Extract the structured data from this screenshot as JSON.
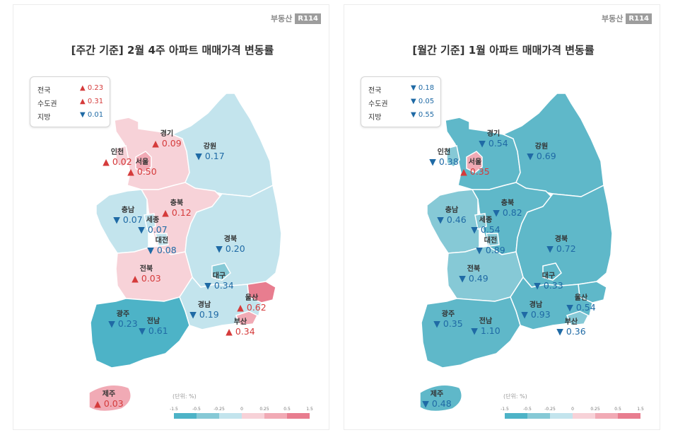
{
  "brand": {
    "text": "부동산",
    "badge": "R114"
  },
  "colors": {
    "up": "#d53b3b",
    "down": "#1f6aa5"
  },
  "legend": {
    "unit": "(단위: %)",
    "ticks": [
      "-1.5",
      "-0.5",
      "-0.25",
      "0",
      "0.25",
      "0.5",
      "1.5"
    ],
    "colors": [
      "#4db3c7",
      "#86c9d6",
      "#c3e4ed",
      "#f7d2d8",
      "#f1aab5",
      "#e87d8f"
    ]
  },
  "chart_data": [
    {
      "type": "map",
      "title": "[주간 기준] 2월 4주 아파트 매매가격 변동률",
      "summary": [
        {
          "label": "전국",
          "dir": "up",
          "value": 0.23
        },
        {
          "label": "수도권",
          "dir": "up",
          "value": 0.31
        },
        {
          "label": "지방",
          "dir": "down",
          "value": 0.01
        }
      ],
      "regions": [
        {
          "name": "경기",
          "dir": "up",
          "value": 0.09,
          "color": "#f7d2d8"
        },
        {
          "name": "인천",
          "dir": "up",
          "value": 0.02,
          "color": "#f7d2d8"
        },
        {
          "name": "서울",
          "dir": "up",
          "value": 0.5,
          "color": "#f1aab5"
        },
        {
          "name": "강원",
          "dir": "down",
          "value": 0.17,
          "color": "#c3e4ed"
        },
        {
          "name": "충북",
          "dir": "up",
          "value": 0.12,
          "color": "#f7d2d8"
        },
        {
          "name": "충남",
          "dir": "down",
          "value": 0.07,
          "color": "#c3e4ed"
        },
        {
          "name": "세종",
          "dir": "down",
          "value": 0.07,
          "color": "#c3e4ed"
        },
        {
          "name": "대전",
          "dir": "down",
          "value": 0.08,
          "color": "#c3e4ed"
        },
        {
          "name": "경북",
          "dir": "down",
          "value": 0.2,
          "color": "#c3e4ed"
        },
        {
          "name": "대구",
          "dir": "down",
          "value": 0.34,
          "color": "#86c9d6"
        },
        {
          "name": "전북",
          "dir": "up",
          "value": 0.03,
          "color": "#f7d2d8"
        },
        {
          "name": "울산",
          "dir": "up",
          "value": 0.62,
          "color": "#e87d8f"
        },
        {
          "name": "경남",
          "dir": "down",
          "value": 0.19,
          "color": "#c3e4ed"
        },
        {
          "name": "부산",
          "dir": "up",
          "value": 0.34,
          "color": "#f1aab5"
        },
        {
          "name": "광주",
          "dir": "down",
          "value": 0.23,
          "color": "#4db3c7"
        },
        {
          "name": "전남",
          "dir": "down",
          "value": 0.61,
          "color": "#4db3c7"
        },
        {
          "name": "제주",
          "dir": "up",
          "value": 0.03,
          "color": "#f1aab5"
        }
      ]
    },
    {
      "type": "map",
      "title": "[월간 기준] 1월 아파트 매매가격 변동률",
      "summary": [
        {
          "label": "전국",
          "dir": "down",
          "value": 0.18
        },
        {
          "label": "수도권",
          "dir": "down",
          "value": 0.05
        },
        {
          "label": "지방",
          "dir": "down",
          "value": 0.55
        }
      ],
      "regions": [
        {
          "name": "경기",
          "dir": "down",
          "value": 0.54,
          "color": "#5fb8c9"
        },
        {
          "name": "인천",
          "dir": "down",
          "value": 0.38,
          "color": "#86c9d6"
        },
        {
          "name": "서울",
          "dir": "up",
          "value": 0.35,
          "color": "#f1aab5"
        },
        {
          "name": "강원",
          "dir": "down",
          "value": 0.69,
          "color": "#5fb8c9"
        },
        {
          "name": "충북",
          "dir": "down",
          "value": 0.82,
          "color": "#5fb8c9"
        },
        {
          "name": "충남",
          "dir": "down",
          "value": 0.46,
          "color": "#86c9d6"
        },
        {
          "name": "세종",
          "dir": "down",
          "value": 0.54,
          "color": "#86c9d6"
        },
        {
          "name": "대전",
          "dir": "down",
          "value": 0.89,
          "color": "#86c9d6"
        },
        {
          "name": "경북",
          "dir": "down",
          "value": 0.72,
          "color": "#5fb8c9"
        },
        {
          "name": "대구",
          "dir": "down",
          "value": 0.33,
          "color": "#5fb8c9"
        },
        {
          "name": "전북",
          "dir": "down",
          "value": 0.49,
          "color": "#86c9d6"
        },
        {
          "name": "울산",
          "dir": "down",
          "value": 0.54,
          "color": "#5fb8c9"
        },
        {
          "name": "경남",
          "dir": "down",
          "value": 0.93,
          "color": "#5fb8c9"
        },
        {
          "name": "부산",
          "dir": "down",
          "value": 0.36,
          "color": "#86c9d6"
        },
        {
          "name": "광주",
          "dir": "down",
          "value": 0.35,
          "color": "#5fb8c9"
        },
        {
          "name": "전남",
          "dir": "down",
          "value": 1.1,
          "color": "#5fb8c9"
        },
        {
          "name": "제주",
          "dir": "down",
          "value": 0.48,
          "color": "#5fb8c9"
        }
      ]
    }
  ]
}
